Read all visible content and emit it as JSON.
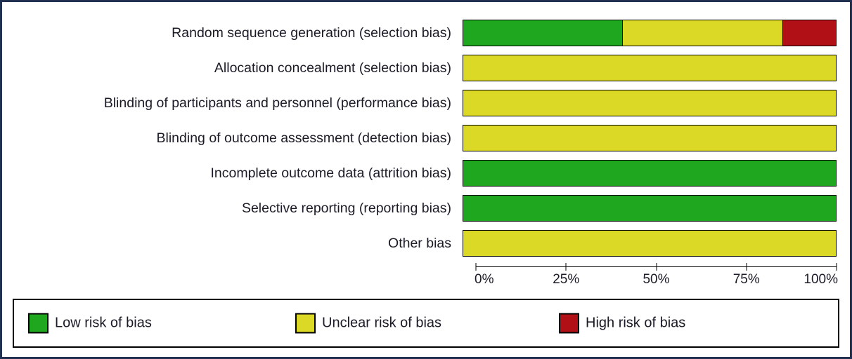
{
  "colors": {
    "low_risk": "#1fa71f",
    "unclear_risk": "#dbd926",
    "high_risk": "#b11116",
    "frame_border": "#1f3050",
    "axis": "#000000"
  },
  "chart_data": {
    "type": "bar",
    "orientation": "horizontal",
    "stacked": true,
    "title": "",
    "xlabel": "",
    "ylabel": "",
    "xlim": [
      0,
      100
    ],
    "x_ticks": [
      "0%",
      "25%",
      "50%",
      "75%",
      "100%"
    ],
    "grid": false,
    "categories": [
      "Random sequence generation (selection bias)",
      "Allocation concealment (selection bias)",
      "Blinding of participants and personnel (performance bias)",
      "Blinding of outcome assessment (detection bias)",
      "Incomplete outcome data (attrition bias)",
      "Selective reporting (reporting bias)",
      "Other bias"
    ],
    "series": [
      {
        "name": "Low risk of bias",
        "color": "#1fa71f",
        "values": [
          42.9,
          0,
          0,
          0,
          100,
          100,
          0
        ]
      },
      {
        "name": "Unclear risk of bias",
        "color": "#dbd926",
        "values": [
          42.9,
          100,
          100,
          100,
          0,
          0,
          100
        ]
      },
      {
        "name": "High risk of bias",
        "color": "#b11116",
        "values": [
          14.2,
          0,
          0,
          0,
          0,
          0,
          0
        ]
      }
    ],
    "legend_position": "bottom"
  },
  "legend": {
    "items": [
      {
        "label": "Low risk of bias",
        "color": "#1fa71f"
      },
      {
        "label": "Unclear risk of bias",
        "color": "#dbd926"
      },
      {
        "label": "High risk of bias",
        "color": "#b11116"
      }
    ]
  }
}
